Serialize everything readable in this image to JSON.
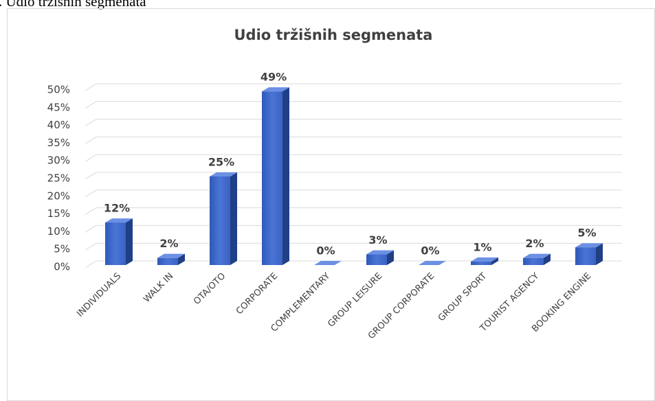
{
  "caption": ". Udio tržišnih segmenata",
  "chart_data": {
    "type": "bar3d",
    "title": "Udio tržišnih segmenata",
    "categories": [
      "INDIVIDUALS",
      "WALK IN",
      "OTA/OTO",
      "CORPORATE",
      "COMPLEMENTARY",
      "GROUP LEISURE",
      "GROUP CORPORATE",
      "GROUP SPORT",
      "TOURIST AGENCY",
      "BOOKING ENGINE"
    ],
    "values": [
      12,
      2,
      25,
      49,
      0,
      3,
      0,
      1,
      2,
      5
    ],
    "value_labels": [
      "12%",
      "2%",
      "25%",
      "49%",
      "0%",
      "3%",
      "0%",
      "1%",
      "2%",
      "5%"
    ],
    "color": "#4472c4",
    "ylim": [
      0,
      50
    ],
    "yticks": [
      {
        "value": 0,
        "label": "0%"
      },
      {
        "value": 5,
        "label": "5%"
      },
      {
        "value": 10,
        "label": "10%"
      },
      {
        "value": 15,
        "label": "15%"
      },
      {
        "value": 20,
        "label": "20%"
      },
      {
        "value": 25,
        "label": "25%"
      },
      {
        "value": 30,
        "label": "30%"
      },
      {
        "value": 35,
        "label": "35%"
      },
      {
        "value": 40,
        "label": "40%"
      },
      {
        "value": 45,
        "label": "45%"
      },
      {
        "value": 50,
        "label": "50%"
      }
    ],
    "grid": true
  }
}
